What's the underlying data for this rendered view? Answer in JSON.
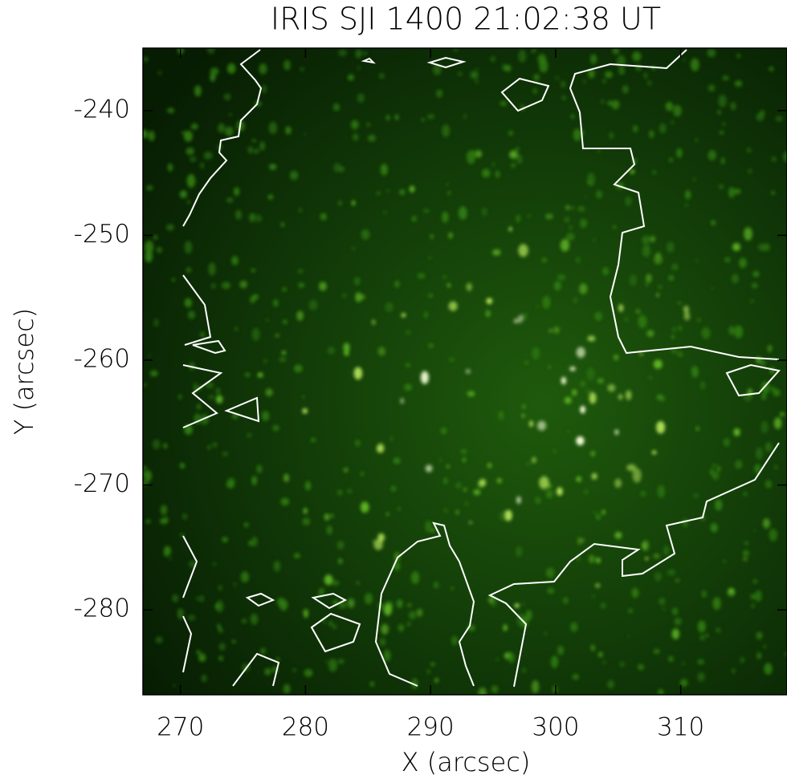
{
  "chart_data": {
    "type": "image",
    "title": "IRIS SJI 1400 21:02:38 UT",
    "x_label": "X (arcsec)",
    "y_label": "Y (arcsec)",
    "xlim": [
      267,
      318.5
    ],
    "ylim": [
      -286.8,
      -235
    ],
    "xticks": [
      270,
      280,
      290,
      300,
      310
    ],
    "yticks": [
      -240,
      -250,
      -260,
      -270,
      -280
    ],
    "colormap": "green",
    "contour_color": "#ffffff"
  }
}
